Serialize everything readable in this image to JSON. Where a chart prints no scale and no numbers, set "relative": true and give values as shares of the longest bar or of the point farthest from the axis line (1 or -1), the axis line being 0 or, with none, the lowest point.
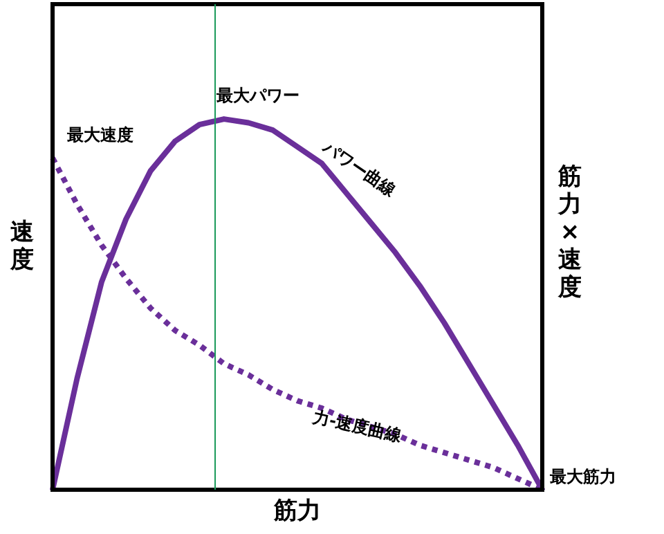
{
  "chart_data": {
    "type": "line",
    "relative": true,
    "xlabel": "筋力",
    "ylabel": "速度",
    "y2label": "筋力×速度",
    "legend": false,
    "marker": "none",
    "categories": [
      null,
      null,
      null,
      null,
      null,
      null,
      null,
      null,
      null,
      null,
      null,
      null,
      null,
      null,
      null,
      null,
      null,
      null,
      null,
      null,
      null
    ],
    "series": [
      {
        "color": "#6a2f9a",
        "line_style": "solid",
        "values": [
          0,
          0.3,
          0.56,
          0.73,
          0.86,
          0.94,
          0.985,
          1,
          0.99,
          0.97,
          0.925,
          0.88,
          0.8,
          0.72,
          0.64,
          0.55,
          0.45,
          0.34,
          0.23,
          0.12,
          0
        ]
      },
      {
        "color": "#6a2f9a",
        "line_style": "dotted",
        "values": [
          0.895,
          0.77,
          0.66,
          0.57,
          0.49,
          0.43,
          0.39,
          0.34,
          0.31,
          0.27,
          0.24,
          0.22,
          0.19,
          0.17,
          0.15,
          0.12,
          0.1,
          0.08,
          0.06,
          0.03,
          0
        ]
      }
    ],
    "annotations": [
      "最大速度",
      "最大パワー",
      "パワー曲線",
      "力-速度曲線",
      "最大筋力"
    ]
  }
}
